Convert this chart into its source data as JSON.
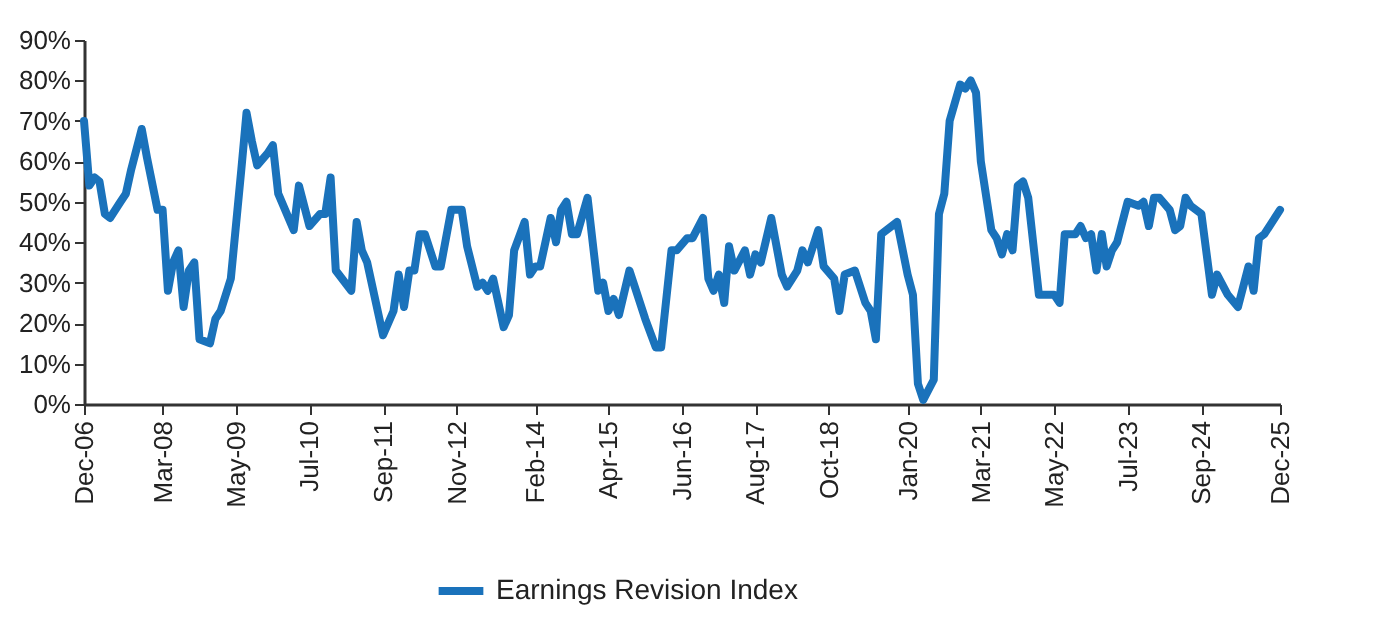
{
  "chart_data": {
    "type": "line",
    "grid": false,
    "legend": "bottom",
    "marker": "none",
    "line_style": "solid",
    "ylim": [
      0,
      90
    ],
    "yticks": [
      {
        "value": 0,
        "label": "0%"
      },
      {
        "value": 10,
        "label": "10%"
      },
      {
        "value": 20,
        "label": "20%"
      },
      {
        "value": 30,
        "label": "30%"
      },
      {
        "value": 40,
        "label": "40%"
      },
      {
        "value": 50,
        "label": "50%"
      },
      {
        "value": 60,
        "label": "60%"
      },
      {
        "value": 70,
        "label": "70%"
      },
      {
        "value": 80,
        "label": "80%"
      },
      {
        "value": 90,
        "label": "90%"
      }
    ],
    "xlim": [
      "2006-12",
      "2025-12"
    ],
    "xticks": [
      {
        "value": "2006-12",
        "label": "Dec-06"
      },
      {
        "value": "2008-03",
        "label": "Mar-08"
      },
      {
        "value": "2009-05",
        "label": "May-09"
      },
      {
        "value": "2010-07",
        "label": "Jul-10"
      },
      {
        "value": "2011-09",
        "label": "Sep-11"
      },
      {
        "value": "2012-11",
        "label": "Nov-12"
      },
      {
        "value": "2014-02",
        "label": "Feb-14"
      },
      {
        "value": "2015-04",
        "label": "Apr-15"
      },
      {
        "value": "2016-06",
        "label": "Jun-16"
      },
      {
        "value": "2017-08",
        "label": "Aug-17"
      },
      {
        "value": "2018-10",
        "label": "Oct-18"
      },
      {
        "value": "2020-01",
        "label": "Jan-20"
      },
      {
        "value": "2021-03",
        "label": "Mar-21"
      },
      {
        "value": "2022-05",
        "label": "May-22"
      },
      {
        "value": "2023-07",
        "label": "Jul-23"
      },
      {
        "value": "2024-09",
        "label": "Sep-24"
      },
      {
        "value": "2025-12",
        "label": "Dec-25"
      }
    ],
    "x": [
      "2006-12",
      "2007-01",
      "2007-02",
      "2007-03",
      "2007-04",
      "2007-05",
      "2007-07",
      "2007-08",
      "2007-09",
      "2007-11",
      "2007-12",
      "2008-02",
      "2008-03",
      "2008-04",
      "2008-05",
      "2008-06",
      "2008-07",
      "2008-08",
      "2008-09",
      "2008-10",
      "2008-12",
      "2009-01",
      "2009-02",
      "2009-04",
      "2009-06",
      "2009-07",
      "2009-08",
      "2009-09",
      "2009-11",
      "2009-12",
      "2010-01",
      "2010-04",
      "2010-05",
      "2010-07",
      "2010-09",
      "2010-10",
      "2010-11",
      "2010-12",
      "2011-03",
      "2011-04",
      "2011-05",
      "2011-06",
      "2011-09",
      "2011-11",
      "2011-12",
      "2012-01",
      "2012-02",
      "2012-03",
      "2012-04",
      "2012-05",
      "2012-07",
      "2012-08",
      "2012-10",
      "2012-12",
      "2013-01",
      "2013-03",
      "2013-04",
      "2013-05",
      "2013-06",
      "2013-08",
      "2013-09",
      "2013-10",
      "2013-12",
      "2014-01",
      "2014-02",
      "2014-03",
      "2014-05",
      "2014-06",
      "2014-07",
      "2014-08",
      "2014-09",
      "2014-10",
      "2014-12",
      "2015-02",
      "2015-03",
      "2015-04",
      "2015-05",
      "2015-06",
      "2015-08",
      "2015-09",
      "2015-11",
      "2016-01",
      "2016-02",
      "2016-04",
      "2016-05",
      "2016-07",
      "2016-08",
      "2016-10",
      "2016-11",
      "2016-12",
      "2017-01",
      "2017-02",
      "2017-03",
      "2017-04",
      "2017-06",
      "2017-07",
      "2017-08",
      "2017-09",
      "2017-11",
      "2018-01",
      "2018-02",
      "2018-04",
      "2018-05",
      "2018-06",
      "2018-08",
      "2018-09",
      "2018-11",
      "2018-12",
      "2019-01",
      "2019-03",
      "2019-05",
      "2019-06",
      "2019-07",
      "2019-08",
      "2019-11",
      "2020-01",
      "2020-02",
      "2020-03",
      "2020-04",
      "2020-06",
      "2020-07",
      "2020-08",
      "2020-09",
      "2020-11",
      "2020-12",
      "2021-01",
      "2021-02",
      "2021-03",
      "2021-05",
      "2021-06",
      "2021-07",
      "2021-08",
      "2021-09",
      "2021-10",
      "2021-11",
      "2021-12",
      "2022-02",
      "2022-05",
      "2022-06",
      "2022-07",
      "2022-09",
      "2022-10",
      "2022-11",
      "2022-12",
      "2023-01",
      "2023-02",
      "2023-03",
      "2023-04",
      "2023-05",
      "2023-07",
      "2023-09",
      "2023-10",
      "2023-11",
      "2023-12",
      "2024-01",
      "2024-03",
      "2024-04",
      "2024-05",
      "2024-06",
      "2024-07",
      "2024-09",
      "2024-11",
      "2024-12",
      "2025-02",
      "2025-04",
      "2025-06",
      "2025-07",
      "2025-08",
      "2025-09",
      "2025-12"
    ],
    "series": [
      {
        "name": "Earnings Revision Index",
        "color": "#1a72bb",
        "values": [
          70,
          54,
          56,
          55,
          47,
          46,
          50,
          52,
          58,
          68,
          61,
          48,
          48,
          28,
          35,
          38,
          24,
          33,
          35,
          16,
          15,
          21,
          23,
          31,
          58,
          72,
          65,
          59,
          62,
          64,
          52,
          43,
          54,
          44,
          47,
          47,
          56,
          33,
          28,
          45,
          38,
          35,
          17,
          23,
          32,
          24,
          33,
          33,
          42,
          42,
          34,
          34,
          48,
          48,
          39,
          29,
          30,
          28,
          31,
          19,
          22,
          38,
          45,
          32,
          34,
          34,
          46,
          40,
          48,
          50,
          42,
          42,
          51,
          28,
          30,
          23,
          26,
          22,
          33,
          29,
          21,
          14,
          14,
          38,
          38,
          41,
          41,
          46,
          31,
          28,
          32,
          25,
          39,
          33,
          38,
          32,
          37,
          35,
          46,
          32,
          29,
          33,
          38,
          35,
          43,
          34,
          31,
          23,
          32,
          33,
          25,
          23,
          16,
          42,
          45,
          32,
          27,
          5,
          1,
          6,
          47,
          52,
          70,
          79,
          78,
          80,
          77,
          60,
          43,
          41,
          37,
          42,
          38,
          54,
          55,
          51,
          27,
          27,
          25,
          42,
          42,
          44,
          41,
          42,
          33,
          42,
          34,
          38,
          40,
          50,
          49,
          50,
          44,
          51,
          51,
          48,
          43,
          44,
          51,
          49,
          47,
          27,
          32,
          27,
          24,
          34,
          28,
          41,
          42,
          48
        ]
      }
    ]
  }
}
